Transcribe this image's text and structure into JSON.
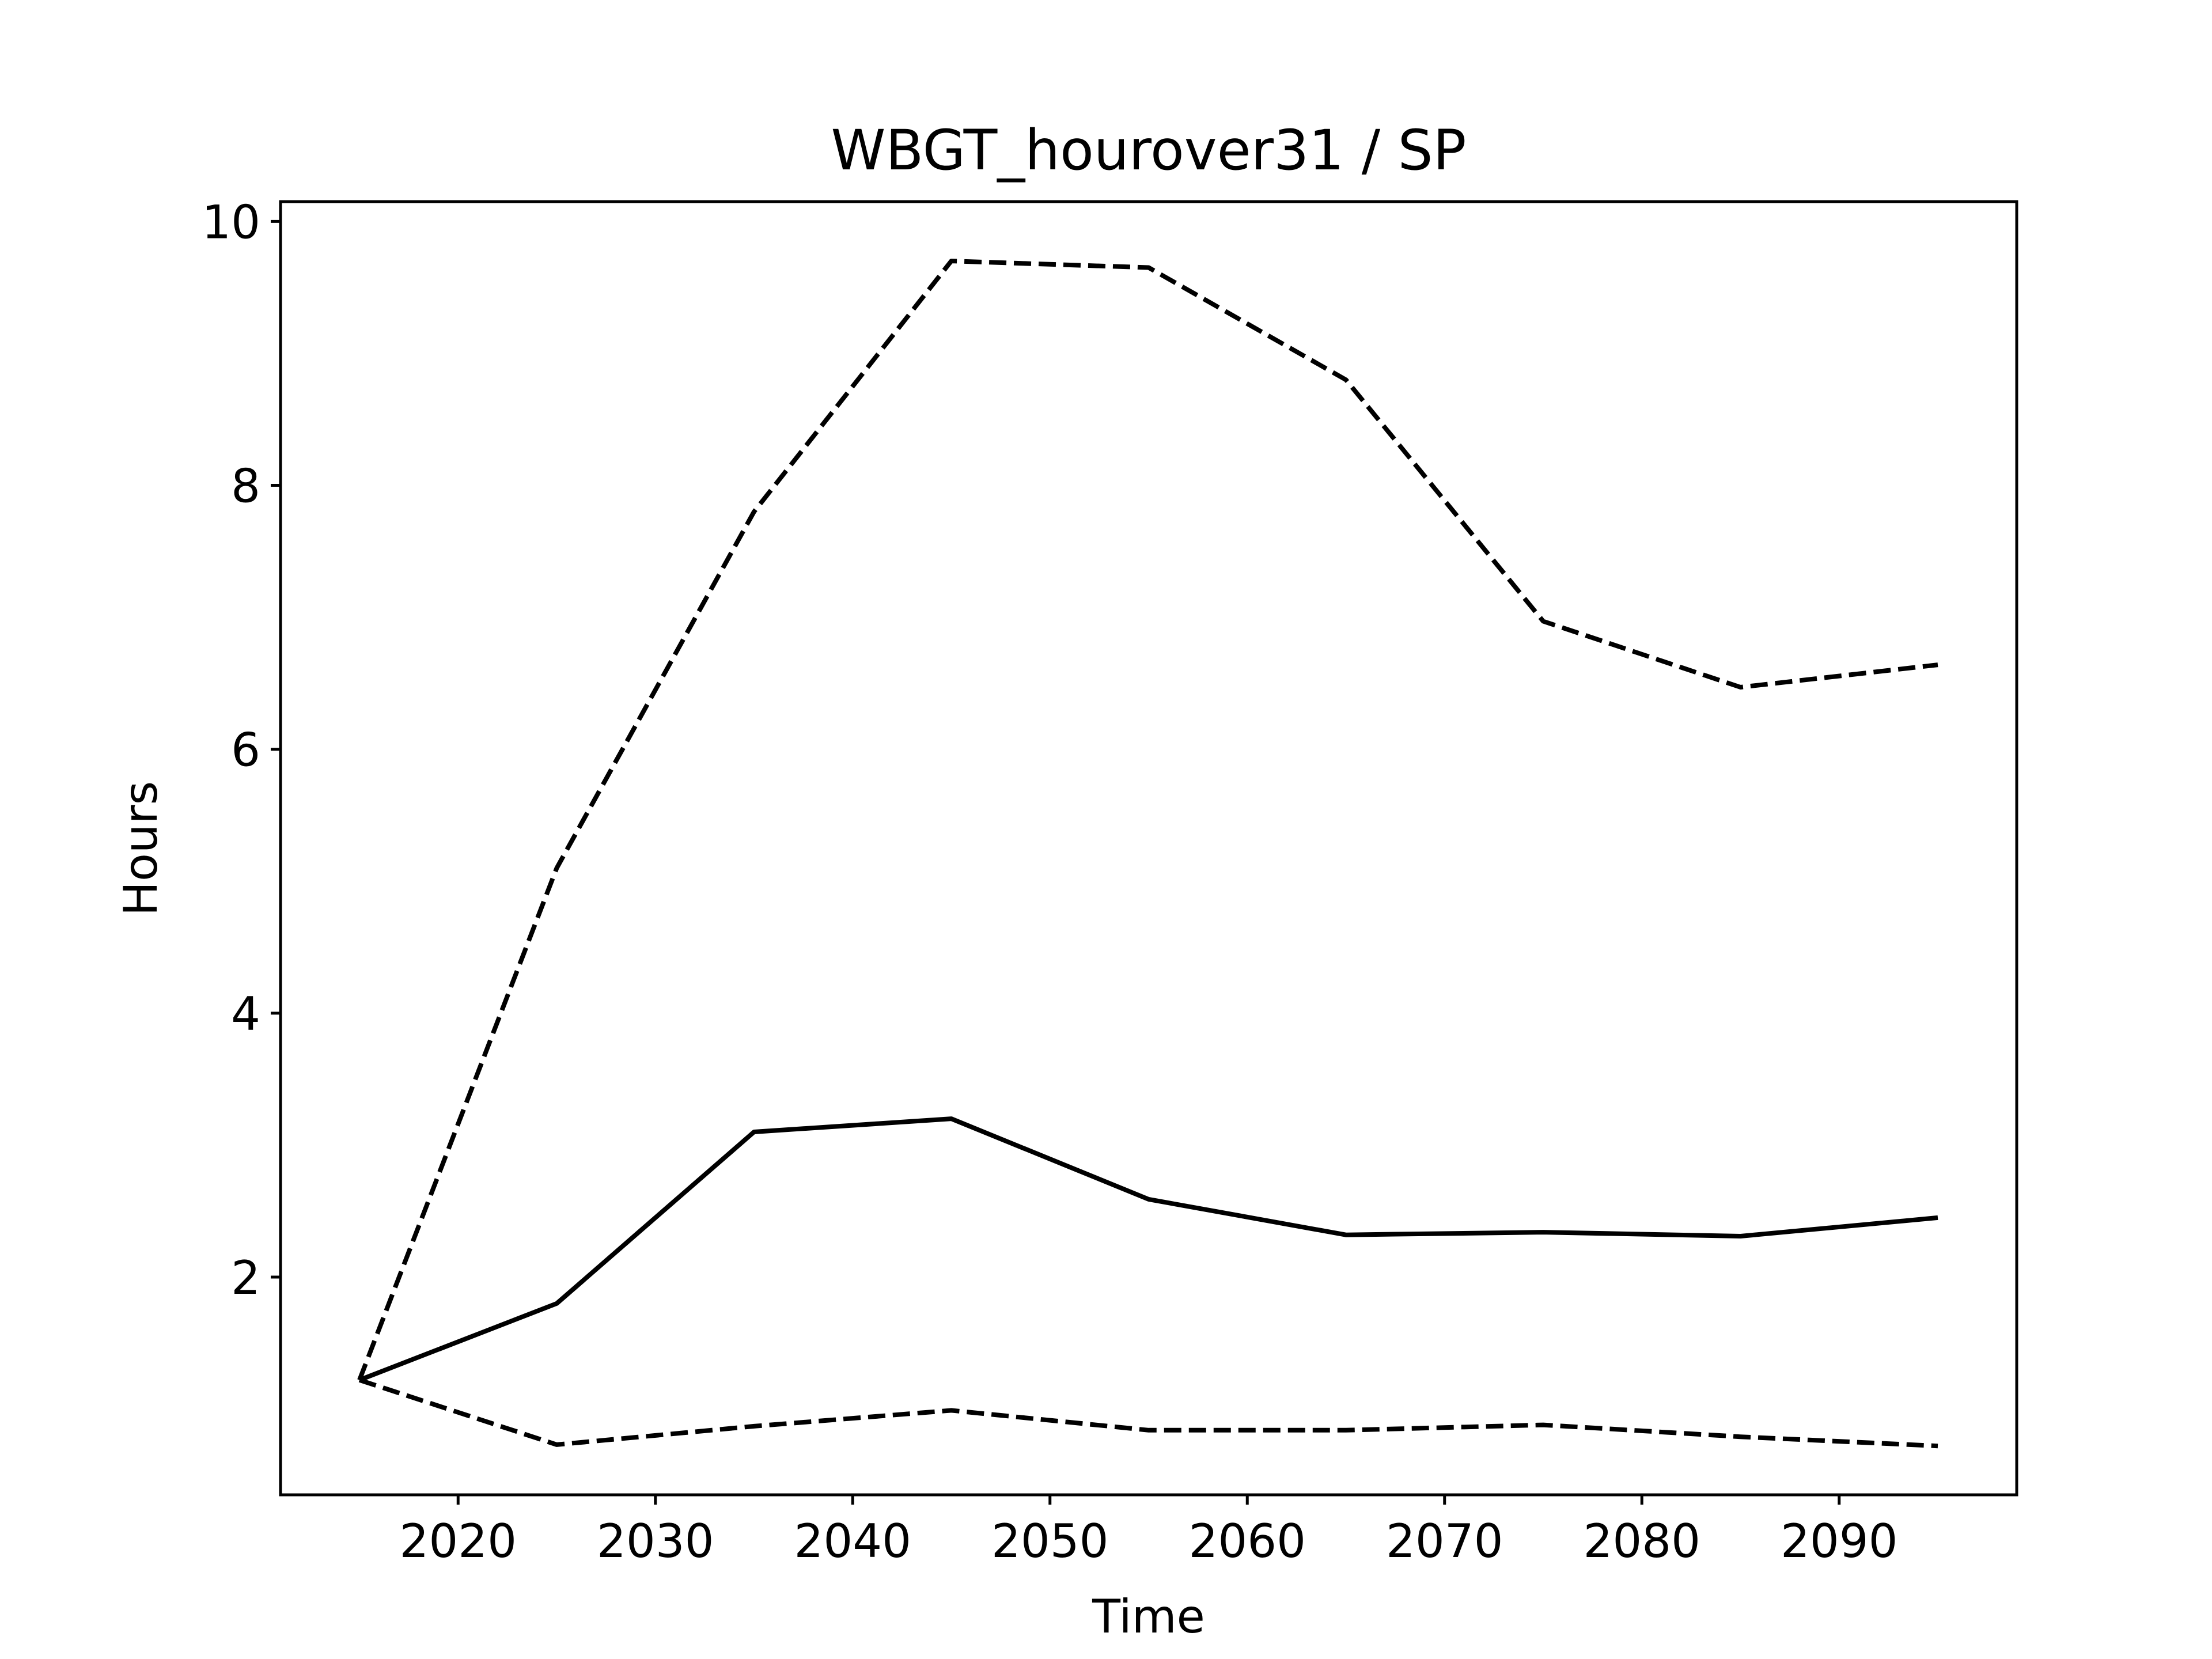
{
  "chart_data": {
    "type": "line",
    "title": "WBGT_hourover31 / SP",
    "xlabel": "Time",
    "ylabel": "Hours",
    "xlim": [
      2011,
      2099
    ],
    "ylim": [
      0.35,
      10.15
    ],
    "xticks": [
      2020,
      2030,
      2040,
      2050,
      2060,
      2070,
      2080,
      2090
    ],
    "yticks": [
      2,
      4,
      6,
      8,
      10
    ],
    "grid": false,
    "legend": false,
    "x": [
      2015,
      2025,
      2035,
      2045,
      2055,
      2065,
      2075,
      2085,
      2095
    ],
    "series": [
      {
        "style": "solid",
        "color": "#000000",
        "values": [
          1.22,
          1.8,
          3.1,
          3.2,
          2.59,
          2.32,
          2.34,
          2.31,
          2.45
        ]
      },
      {
        "style": "dashed",
        "color": "#000000",
        "values": [
          1.22,
          5.1,
          7.8,
          9.7,
          9.65,
          8.8,
          6.97,
          6.47,
          6.64
        ]
      },
      {
        "style": "dashed",
        "color": "#000000",
        "values": [
          1.22,
          0.73,
          0.87,
          0.99,
          0.84,
          0.84,
          0.88,
          0.79,
          0.72
        ]
      }
    ]
  }
}
